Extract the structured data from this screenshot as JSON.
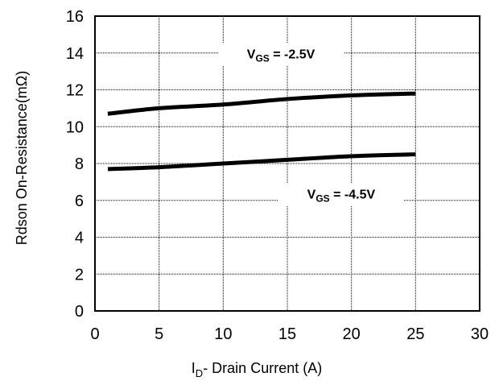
{
  "chart_data": {
    "type": "line",
    "xlabel": {
      "prefix": "I",
      "subscript": "D",
      "rest": "- Drain Current (A)"
    },
    "ylabel": "Rdson On-Resistance(mΩ)",
    "xlim": [
      0,
      30
    ],
    "ylim": [
      0,
      16
    ],
    "xticks": [
      "0",
      "5",
      "10",
      "15",
      "20",
      "25",
      "30"
    ],
    "yticks": [
      "0",
      "2",
      "4",
      "6",
      "8",
      "10",
      "12",
      "14",
      "16"
    ],
    "grid": true,
    "series": [
      {
        "label": {
          "prefix": "V",
          "subscript": "GS",
          "rest": " = -2.5V"
        },
        "x": [
          1,
          5,
          10,
          15,
          20,
          25
        ],
        "y": [
          10.7,
          11.0,
          11.2,
          11.5,
          11.7,
          11.8
        ]
      },
      {
        "label": {
          "prefix": "V",
          "subscript": "GS",
          "rest": " = -4.5V"
        },
        "x": [
          1,
          5,
          10,
          15,
          20,
          25
        ],
        "y": [
          7.7,
          7.8,
          8.0,
          8.2,
          8.4,
          8.5
        ]
      }
    ],
    "annotations": [
      {
        "series_index": 0,
        "at": [
          14.5,
          13.7
        ]
      },
      {
        "series_index": 1,
        "at": [
          19.2,
          6.1
        ]
      }
    ]
  }
}
